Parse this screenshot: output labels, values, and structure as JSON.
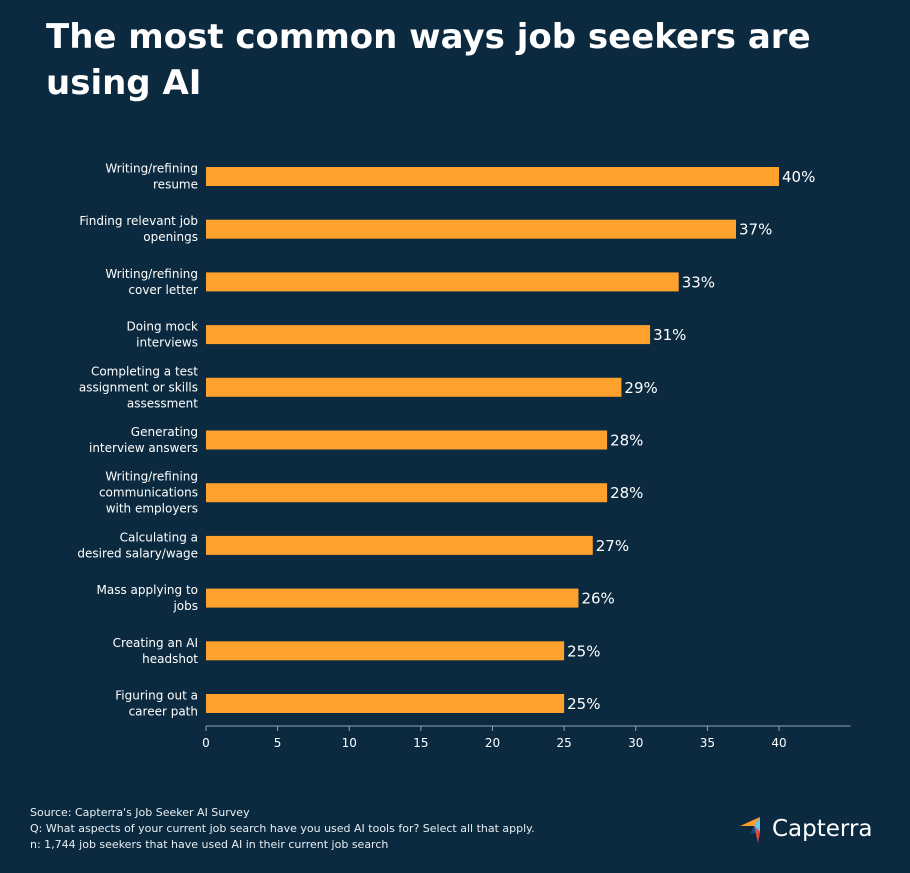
{
  "title": "The most common ways job seekers are using AI",
  "chart_data": {
    "type": "bar",
    "orientation": "horizontal",
    "categories": [
      [
        "Writing/refining",
        "resume"
      ],
      [
        "Finding relevant job",
        "openings"
      ],
      [
        "Writing/refining",
        "cover letter"
      ],
      [
        "Doing mock",
        "interviews"
      ],
      [
        "Completing a test",
        "assignment or skills",
        "assessment"
      ],
      [
        "Generating",
        "interview answers"
      ],
      [
        "Writing/refining",
        "communications",
        "with employers"
      ],
      [
        "Calculating a",
        "desired salary/wage"
      ],
      [
        "Mass applying to",
        "jobs"
      ],
      [
        "Creating an AI",
        "headshot"
      ],
      [
        "Figuring out a",
        "career path"
      ]
    ],
    "values": [
      40,
      37,
      33,
      31,
      29,
      28,
      28,
      27,
      26,
      25,
      25
    ],
    "value_labels": [
      "40%",
      "37%",
      "33%",
      "31%",
      "29%",
      "28%",
      "28%",
      "27%",
      "26%",
      "25%",
      "25%"
    ],
    "xticks": [
      0,
      5,
      10,
      15,
      20,
      25,
      30,
      35,
      40
    ],
    "xlim": [
      0,
      45
    ],
    "grid": false,
    "bar_color": "#ffa12d"
  },
  "footer": {
    "source": "Source: Capterra's Job Seeker AI Survey",
    "question": "Q: What aspects of your current job search have you used AI tools for? Select all that apply.",
    "sample": "n: 1,744 job seekers that have used AI in their current job search"
  },
  "logo": {
    "text": "Capterra",
    "icon": "capterra-arrow-icon",
    "colors": [
      "#ff9d28",
      "#68c5ed",
      "#044d80",
      "#e54747"
    ]
  },
  "colors": {
    "background": "#0b2a40",
    "text": "#ffffff",
    "axis": "#8fa3b3"
  }
}
